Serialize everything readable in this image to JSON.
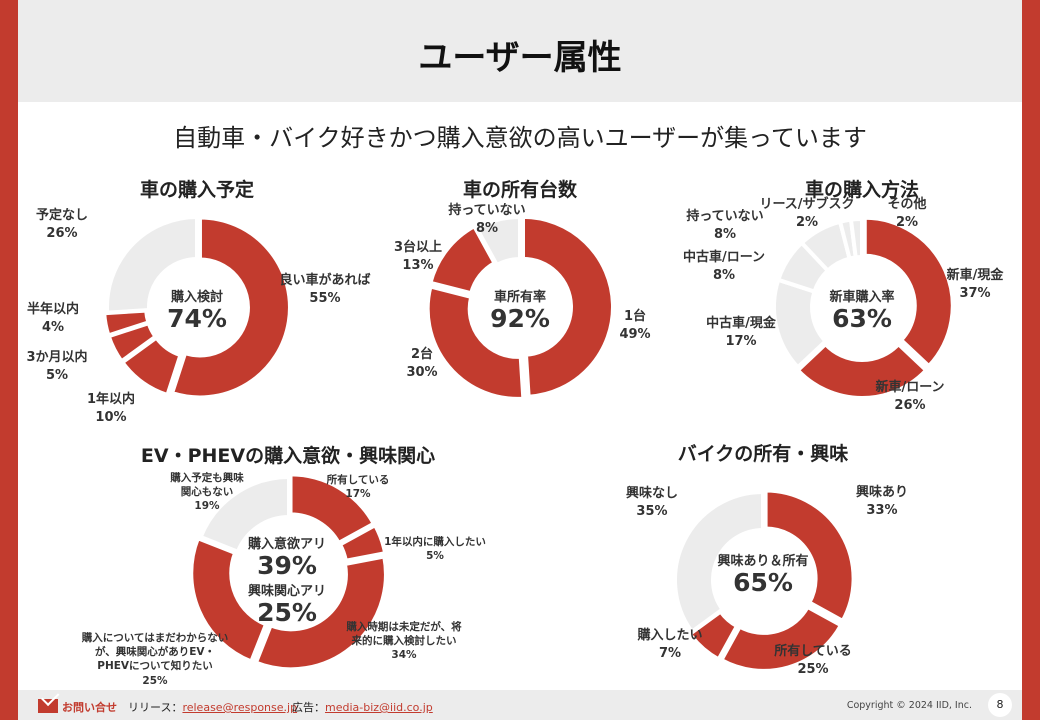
{
  "header": {
    "title": "ユーザー属性"
  },
  "subtitle": "自動車・バイク好きかつ購入意欲の高いユーザーが集っています",
  "colors": {
    "red": "#c23b2e",
    "gray": "#ececec"
  },
  "chart_data": [
    {
      "type": "pie",
      "title": "車の購入予定",
      "center_label": "購入検討",
      "center_value": "74%",
      "categories": [
        "良い車があれば",
        "1年以内",
        "3か月以内",
        "半年以内",
        "予定なし"
      ],
      "values": [
        55,
        10,
        5,
        4,
        26
      ],
      "labels": [
        "55%",
        "10%",
        "5%",
        "4%",
        "26%"
      ],
      "colors": [
        "red",
        "red",
        "red",
        "red",
        "gray"
      ]
    },
    {
      "type": "pie",
      "title": "車の所有台数",
      "center_label": "車所有率",
      "center_value": "92%",
      "categories": [
        "1台",
        "2台",
        "3台以上",
        "持っていない"
      ],
      "values": [
        49,
        30,
        13,
        8
      ],
      "labels": [
        "49%",
        "30%",
        "13%",
        "8%"
      ],
      "colors": [
        "red",
        "red",
        "red",
        "gray"
      ]
    },
    {
      "type": "pie",
      "title": "車の購入方法",
      "center_label": "新車購入率",
      "center_value": "63%",
      "categories": [
        "新車/現金",
        "新車/ローン",
        "中古車/現金",
        "中古車/ローン",
        "持っていない",
        "リース/サブスク",
        "その他"
      ],
      "values": [
        37,
        26,
        17,
        8,
        8,
        2,
        2
      ],
      "labels": [
        "37%",
        "26%",
        "17%",
        "8%",
        "8%",
        "2%",
        "2%"
      ],
      "colors": [
        "red",
        "red",
        "gray",
        "gray",
        "gray",
        "gray",
        "gray"
      ]
    },
    {
      "type": "pie",
      "title": "EV・PHEVの購入意欲・興味関心",
      "center_label": "購入意欲アリ",
      "center_value": "39%",
      "center_label2": "興味関心アリ",
      "center_value2": "25%",
      "categories": [
        "所有している",
        "1年以内に購入したい",
        "購入時期は未定だが、将来的に購入検討したい",
        "購入についてはまだわからないが、興味関心がありEV・PHEVについて知りたい",
        "購入予定も興味関心もない"
      ],
      "values": [
        17,
        5,
        34,
        25,
        19
      ],
      "labels": [
        "17%",
        "5%",
        "34%",
        "25%",
        "19%"
      ],
      "colors": [
        "red",
        "red",
        "red",
        "red",
        "gray"
      ]
    },
    {
      "type": "pie",
      "title": "バイクの所有・興味",
      "center_label": "興味あり＆所有",
      "center_value": "65%",
      "categories": [
        "興味あり",
        "所有している",
        "購入したい",
        "興味なし"
      ],
      "values": [
        33,
        25,
        7,
        35
      ],
      "labels": [
        "33%",
        "25%",
        "7%",
        "35%"
      ],
      "colors": [
        "red",
        "red",
        "red",
        "gray"
      ]
    }
  ],
  "footer": {
    "contact": "お問い合せ",
    "release_label": "リリース：",
    "release_email": "release@response.jp",
    "ad_label": "広告：",
    "ad_email": "media-biz@iid.co.jp",
    "copyright": "Copyright © 2024 IID, Inc.",
    "page": "8"
  }
}
